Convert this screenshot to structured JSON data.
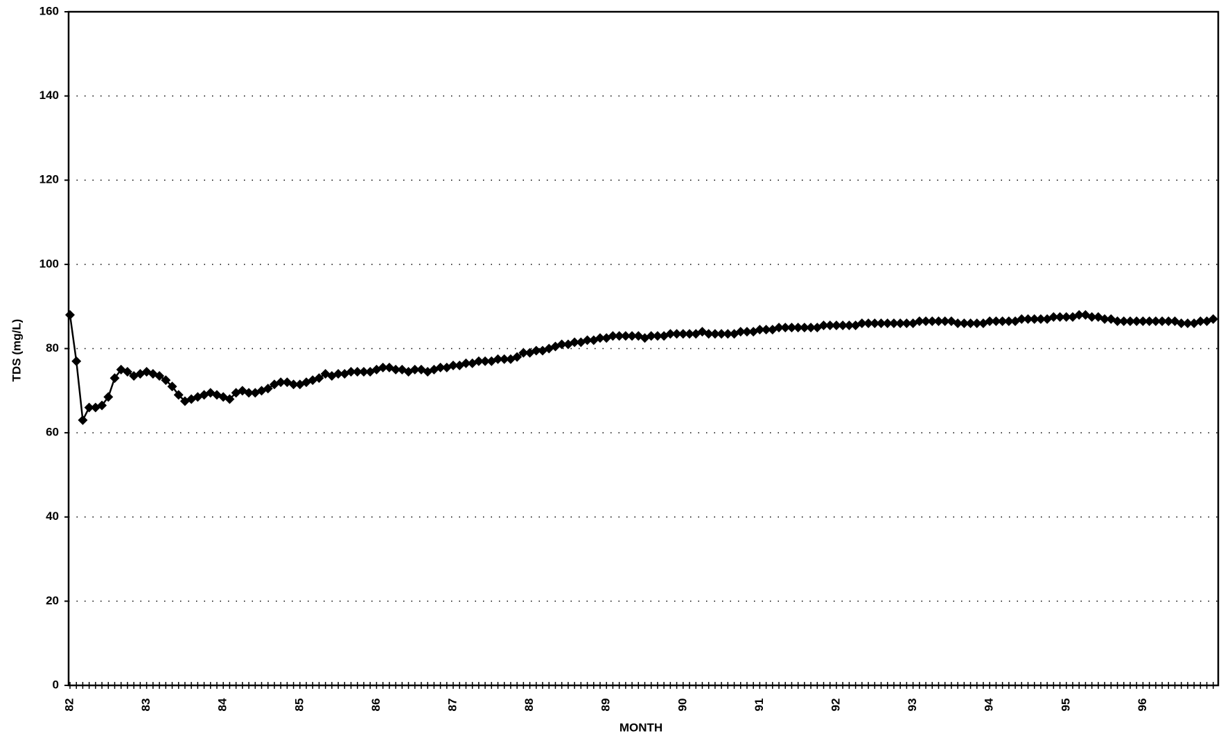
{
  "chart_data": {
    "type": "line",
    "y_label": "TDS (mg/L)",
    "x_label": "MONTH",
    "color": "#000000",
    "grid": true,
    "ylim": [
      0,
      160
    ],
    "yticks": [
      0,
      20,
      40,
      60,
      80,
      100,
      120,
      140,
      160
    ],
    "categories": [
      "82",
      null,
      null,
      null,
      null,
      null,
      null,
      null,
      null,
      null,
      null,
      null,
      "83",
      null,
      null,
      null,
      null,
      null,
      null,
      null,
      null,
      null,
      null,
      null,
      "84",
      null,
      null,
      null,
      null,
      null,
      null,
      null,
      null,
      null,
      null,
      null,
      "85",
      null,
      null,
      null,
      null,
      null,
      null,
      null,
      null,
      null,
      null,
      null,
      "86",
      null,
      null,
      null,
      null,
      null,
      null,
      null,
      null,
      null,
      null,
      null,
      "87",
      null,
      null,
      null,
      null,
      null,
      null,
      null,
      null,
      null,
      null,
      null,
      "88",
      null,
      null,
      null,
      null,
      null,
      null,
      null,
      null,
      null,
      null,
      null,
      "89",
      null,
      null,
      null,
      null,
      null,
      null,
      null,
      null,
      null,
      null,
      null,
      "90",
      null,
      null,
      null,
      null,
      null,
      null,
      null,
      null,
      null,
      null,
      null,
      "91",
      null,
      null,
      null,
      null,
      null,
      null,
      null,
      null,
      null,
      null,
      null,
      "92",
      null,
      null,
      null,
      null,
      null,
      null,
      null,
      null,
      null,
      null,
      null,
      "93",
      null,
      null,
      null,
      null,
      null,
      null,
      null,
      null,
      null,
      null,
      null,
      "94",
      null,
      null,
      null,
      null,
      null,
      null,
      null,
      null,
      null,
      null,
      null,
      "95",
      null,
      null,
      null,
      null,
      null,
      null,
      null,
      null,
      null,
      null,
      null,
      "96",
      null,
      null,
      null,
      null,
      null,
      null,
      null,
      null,
      null,
      null,
      null
    ],
    "values": [
      88,
      77,
      63,
      66,
      66,
      66.5,
      68.5,
      73,
      75,
      74.5,
      73.5,
      74,
      74.5,
      74,
      73.5,
      72.5,
      71,
      69,
      67.5,
      68,
      68.5,
      69,
      69.5,
      69,
      68.5,
      68,
      69.5,
      70,
      69.5,
      69.5,
      70,
      70.5,
      71.5,
      72,
      72,
      71.5,
      71.5,
      72,
      72.5,
      73,
      74,
      73.5,
      74,
      74,
      74.5,
      74.5,
      74.5,
      74.5,
      75,
      75.5,
      75.5,
      75,
      75,
      74.5,
      75,
      75,
      74.5,
      75,
      75.5,
      75.5,
      76,
      76,
      76.5,
      76.5,
      77,
      77,
      77,
      77.5,
      77.5,
      77.5,
      78,
      79,
      79,
      79.5,
      79.5,
      80,
      80.5,
      81,
      81,
      81.5,
      81.5,
      82,
      82,
      82.5,
      82.5,
      83,
      83,
      83,
      83,
      83,
      82.5,
      83,
      83,
      83,
      83.5,
      83.5,
      83.5,
      83.5,
      83.5,
      84,
      83.5,
      83.5,
      83.5,
      83.5,
      83.5,
      84,
      84,
      84,
      84.5,
      84.5,
      84.5,
      85,
      85,
      85,
      85,
      85,
      85,
      85,
      85.5,
      85.5,
      85.5,
      85.5,
      85.5,
      85.5,
      86,
      86,
      86,
      86,
      86,
      86,
      86,
      86,
      86,
      86.5,
      86.5,
      86.5,
      86.5,
      86.5,
      86.5,
      86,
      86,
      86,
      86,
      86,
      86.5,
      86.5,
      86.5,
      86.5,
      86.5,
      87,
      87,
      87,
      87,
      87,
      87.5,
      87.5,
      87.5,
      87.5,
      88,
      88,
      87.5,
      87.5,
      87,
      87,
      86.5,
      86.5,
      86.5,
      86.5,
      86.5,
      86.5,
      86.5,
      86.5,
      86.5,
      86.5,
      86,
      86,
      86,
      86.5,
      86.5,
      87
    ]
  }
}
